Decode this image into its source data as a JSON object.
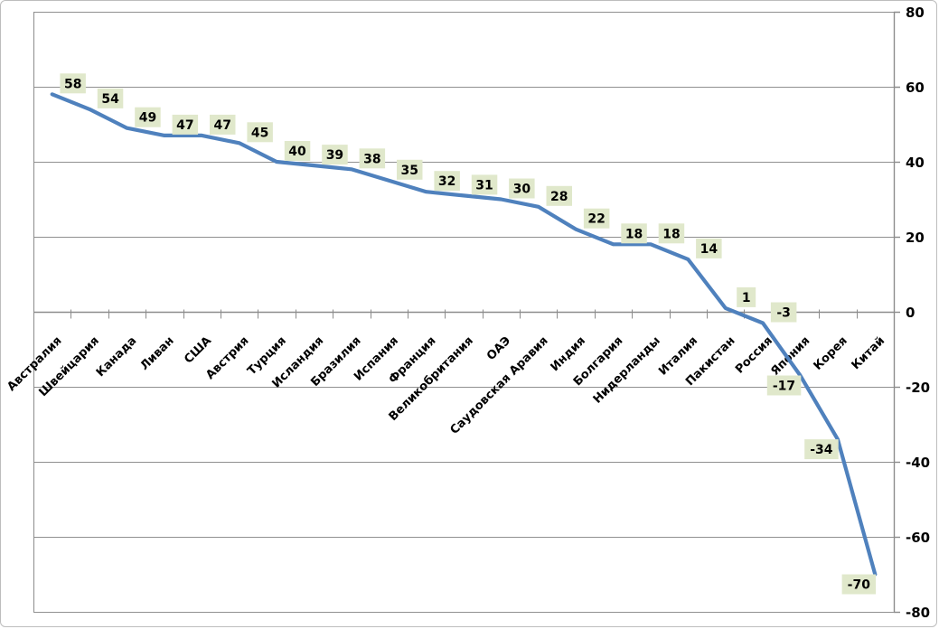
{
  "chart_data": {
    "type": "line",
    "categories": [
      "Австралия",
      "Швейцария",
      "Канада",
      "Ливан",
      "США",
      "Австрия",
      "Турция",
      "Исландия",
      "Бразилия",
      "Испания",
      "Франция",
      "Великобритания",
      "ОАЭ",
      "Саудовская Аравия",
      "Индия",
      "Болгария",
      "Нидерланды",
      "Италия",
      "Пакистан",
      "Россия",
      "Япония",
      "Корея",
      "Китай"
    ],
    "series": [
      {
        "name": "",
        "values": [
          58,
          54,
          49,
          47,
          47,
          45,
          40,
          39,
          38,
          35,
          32,
          31,
          30,
          28,
          22,
          18,
          18,
          14,
          1,
          -3,
          -17,
          -34,
          -70
        ]
      }
    ],
    "data_labels": [
      58,
      54,
      49,
      47,
      47,
      45,
      40,
      39,
      38,
      35,
      32,
      31,
      30,
      28,
      22,
      18,
      18,
      14,
      1,
      "-3",
      "-17",
      "-34",
      "-70"
    ],
    "title": "",
    "xlabel": "",
    "ylabel": "",
    "ylim": [
      -80,
      80
    ],
    "yticks": [
      80,
      60,
      40,
      20,
      0,
      -20,
      -40,
      -60,
      -80
    ],
    "y_axis_side": "right",
    "grid": true,
    "legend": "none",
    "colors": {
      "line": "#4f81bd",
      "data_label_bg": "#e0e8cb",
      "data_label_text": "#000000",
      "gridline": "#909090",
      "axis_line": "#8c8c8c",
      "tick": "#8c8c8c",
      "background": "#ffffff",
      "frame_border": "#bdbdbd"
    }
  }
}
